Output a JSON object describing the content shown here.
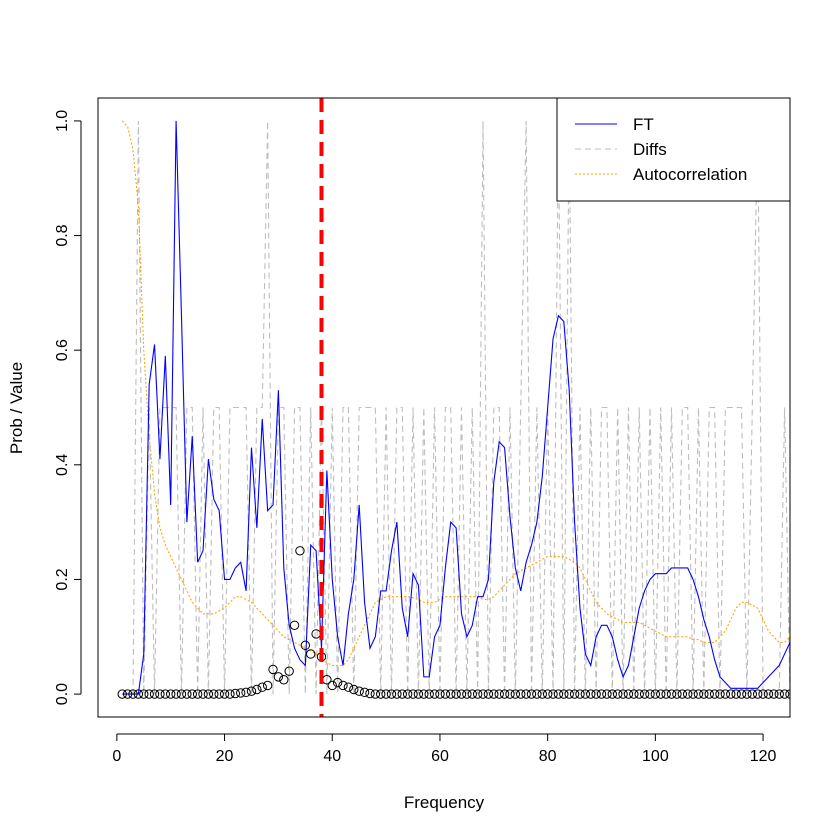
{
  "chart_data": {
    "type": "line",
    "xlabel": "Frequency",
    "ylabel": "Prob / Value",
    "xlim": [
      -3.5,
      125
    ],
    "ylim": [
      -0.04,
      1.04
    ],
    "x_ticks": [
      0,
      20,
      40,
      60,
      80,
      100,
      120
    ],
    "y_ticks": [
      0.0,
      0.2,
      0.4,
      0.6,
      0.8,
      1.0
    ],
    "x_tick_labels": [
      "0",
      "20",
      "40",
      "60",
      "80",
      "100",
      "120"
    ],
    "y_tick_labels": [
      "0.0",
      "0.2",
      "0.4",
      "0.6",
      "0.8",
      "1.0"
    ],
    "grid": false,
    "legend_position": "top-right",
    "vline": {
      "x": 38,
      "color": "#ff0000",
      "style": "dashed"
    },
    "series": [
      {
        "name": "FT",
        "color": "#0000ff",
        "style": "solid",
        "x": [
          1,
          2,
          3,
          4,
          5,
          6,
          7,
          8,
          9,
          10,
          11,
          12,
          13,
          14,
          15,
          16,
          17,
          18,
          19,
          20,
          21,
          22,
          23,
          24,
          25,
          26,
          27,
          28,
          29,
          30,
          31,
          32,
          33,
          34,
          35,
          36,
          37,
          38,
          39,
          40,
          41,
          42,
          43,
          44,
          45,
          46,
          47,
          48,
          49,
          50,
          51,
          52,
          53,
          54,
          55,
          56,
          57,
          58,
          59,
          60,
          61,
          62,
          63,
          64,
          65,
          66,
          67,
          68,
          69,
          70,
          71,
          72,
          73,
          74,
          75,
          76,
          77,
          78,
          79,
          80,
          81,
          82,
          83,
          84,
          85,
          86,
          87,
          88,
          89,
          90,
          91,
          92,
          93,
          94,
          95,
          96,
          97,
          98,
          99,
          100,
          101,
          102,
          103,
          104,
          105,
          106,
          107,
          108,
          109,
          110,
          111,
          112,
          113,
          114,
          115,
          116,
          117,
          118,
          119,
          120,
          121,
          122,
          123,
          124,
          125
        ],
        "y": [
          0.0,
          0.0,
          0.0,
          0.0,
          0.07,
          0.54,
          0.61,
          0.41,
          0.59,
          0.33,
          1.0,
          0.66,
          0.3,
          0.45,
          0.23,
          0.25,
          0.41,
          0.34,
          0.32,
          0.2,
          0.2,
          0.22,
          0.23,
          0.18,
          0.43,
          0.29,
          0.48,
          0.32,
          0.33,
          0.53,
          0.22,
          0.12,
          0.08,
          0.06,
          0.05,
          0.26,
          0.25,
          0.08,
          0.39,
          0.2,
          0.1,
          0.05,
          0.14,
          0.2,
          0.33,
          0.16,
          0.08,
          0.1,
          0.18,
          0.18,
          0.25,
          0.3,
          0.15,
          0.1,
          0.21,
          0.19,
          0.03,
          0.03,
          0.1,
          0.12,
          0.22,
          0.3,
          0.29,
          0.14,
          0.1,
          0.12,
          0.17,
          0.17,
          0.2,
          0.37,
          0.44,
          0.43,
          0.31,
          0.22,
          0.18,
          0.23,
          0.26,
          0.3,
          0.38,
          0.5,
          0.62,
          0.66,
          0.65,
          0.53,
          0.3,
          0.15,
          0.07,
          0.05,
          0.1,
          0.12,
          0.12,
          0.1,
          0.06,
          0.03,
          0.05,
          0.1,
          0.15,
          0.18,
          0.2,
          0.21,
          0.21,
          0.21,
          0.22,
          0.22,
          0.22,
          0.22,
          0.2,
          0.17,
          0.13,
          0.1,
          0.06,
          0.03,
          0.02,
          0.01,
          0.01,
          0.01,
          0.01,
          0.01,
          0.01,
          0.02,
          0.03,
          0.04,
          0.05,
          0.07,
          0.09
        ]
      },
      {
        "name": "Diffs",
        "color": "#bebebe",
        "style": "dashed",
        "x": [
          1,
          2,
          3,
          4,
          5,
          6,
          7,
          8,
          9,
          10,
          11,
          12,
          13,
          14,
          15,
          16,
          17,
          18,
          19,
          20,
          21,
          22,
          23,
          24,
          25,
          26,
          27,
          28,
          29,
          30,
          31,
          32,
          33,
          34,
          35,
          36,
          37,
          38,
          39,
          40,
          41,
          42,
          43,
          44,
          45,
          46,
          47,
          48,
          49,
          50,
          51,
          52,
          53,
          54,
          55,
          56,
          57,
          58,
          59,
          60,
          61,
          62,
          63,
          64,
          65,
          66,
          67,
          68,
          69,
          70,
          71,
          72,
          73,
          74,
          75,
          76,
          77,
          78,
          79,
          80,
          81,
          82,
          83,
          84,
          85,
          86,
          87,
          88,
          89,
          90,
          91,
          92,
          93,
          94,
          95,
          96,
          97,
          98,
          99,
          100,
          101,
          102,
          103,
          104,
          105,
          106,
          107,
          108,
          109,
          110,
          111,
          112,
          113,
          114,
          115,
          116,
          117,
          118,
          119,
          120,
          121,
          122,
          123,
          124,
          125
        ],
        "y": [
          0,
          0,
          0,
          1,
          0,
          0.5,
          0,
          0.5,
          0.5,
          0.5,
          0.5,
          0,
          0.5,
          0.5,
          0,
          0.5,
          0,
          0.5,
          0.5,
          0,
          0.5,
          0.5,
          0.5,
          0.5,
          0,
          0.5,
          0.5,
          1,
          0,
          0.5,
          0.5,
          0,
          0.5,
          0.5,
          0,
          0.5,
          0,
          0.5,
          0,
          0.5,
          0,
          0.5,
          0.5,
          0,
          0.5,
          0.5,
          0.5,
          0.5,
          0,
          0.5,
          0,
          0.5,
          0.5,
          0,
          0.5,
          0,
          0.5,
          0,
          0.5,
          0,
          0.5,
          0.5,
          0,
          0.5,
          0,
          0.5,
          0,
          1,
          0,
          0.5,
          0.5,
          0,
          0.5,
          0,
          0.5,
          1,
          0,
          0.5,
          0,
          0.5,
          0,
          1,
          0,
          1,
          0,
          0.5,
          0,
          0.5,
          0,
          0.5,
          0.5,
          0,
          0.5,
          0,
          0.5,
          0,
          0.5,
          0,
          0.5,
          0,
          0.5,
          0,
          0.5,
          0,
          0.5,
          0.5,
          0,
          0.5,
          0,
          0.5,
          0.5,
          0,
          0.5,
          0.5,
          0.5,
          0.5,
          0,
          0.5,
          1,
          0,
          0,
          0,
          0,
          0.5,
          0
        ]
      },
      {
        "name": "Autocorrelation",
        "color": "#ffa500",
        "style": "dotted",
        "x": [
          1,
          2,
          3,
          4,
          5,
          6,
          7,
          8,
          9,
          10,
          11,
          12,
          13,
          14,
          15,
          16,
          17,
          18,
          19,
          20,
          21,
          22,
          23,
          24,
          25,
          26,
          27,
          28,
          29,
          30,
          31,
          32,
          33,
          34,
          35,
          36,
          37,
          38,
          39,
          40,
          41,
          42,
          43,
          44,
          45,
          46,
          47,
          48,
          49,
          50,
          51,
          52,
          53,
          54,
          55,
          56,
          57,
          58,
          59,
          60,
          61,
          62,
          63,
          64,
          65,
          66,
          67,
          68,
          69,
          70,
          71,
          72,
          73,
          74,
          75,
          76,
          77,
          78,
          79,
          80,
          81,
          82,
          83,
          84,
          85,
          86,
          87,
          88,
          89,
          90,
          91,
          92,
          93,
          94,
          95,
          96,
          97,
          98,
          99,
          100,
          101,
          102,
          103,
          104,
          105,
          106,
          107,
          108,
          109,
          110,
          111,
          112,
          113,
          114,
          115,
          116,
          117,
          118,
          119,
          120,
          121,
          122,
          123,
          124,
          125
        ],
        "y": [
          1.0,
          0.99,
          0.95,
          0.85,
          0.6,
          0.45,
          0.35,
          0.29,
          0.26,
          0.24,
          0.22,
          0.2,
          0.18,
          0.16,
          0.15,
          0.14,
          0.14,
          0.14,
          0.145,
          0.15,
          0.16,
          0.17,
          0.17,
          0.165,
          0.16,
          0.15,
          0.14,
          0.13,
          0.12,
          0.11,
          0.1,
          0.095,
          0.09,
          0.085,
          0.08,
          0.075,
          0.07,
          0.06,
          0.055,
          0.05,
          0.05,
          0.05,
          0.06,
          0.08,
          0.1,
          0.12,
          0.14,
          0.16,
          0.165,
          0.17,
          0.17,
          0.17,
          0.17,
          0.17,
          0.168,
          0.165,
          0.16,
          0.16,
          0.16,
          0.165,
          0.17,
          0.17,
          0.17,
          0.17,
          0.17,
          0.17,
          0.17,
          0.165,
          0.165,
          0.17,
          0.18,
          0.19,
          0.2,
          0.21,
          0.215,
          0.22,
          0.225,
          0.23,
          0.235,
          0.24,
          0.24,
          0.24,
          0.24,
          0.235,
          0.23,
          0.22,
          0.2,
          0.18,
          0.16,
          0.15,
          0.14,
          0.135,
          0.13,
          0.125,
          0.125,
          0.125,
          0.125,
          0.12,
          0.115,
          0.11,
          0.105,
          0.1,
          0.1,
          0.1,
          0.1,
          0.1,
          0.095,
          0.095,
          0.09,
          0.09,
          0.09,
          0.1,
          0.11,
          0.13,
          0.15,
          0.16,
          0.16,
          0.155,
          0.15,
          0.13,
          0.11,
          0.1,
          0.09,
          0.09,
          0.1
        ]
      },
      {
        "name": "",
        "type": "scatter",
        "color": "#000000",
        "x": [
          1,
          2,
          3,
          4,
          5,
          6,
          7,
          8,
          9,
          10,
          11,
          12,
          13,
          14,
          15,
          16,
          17,
          18,
          19,
          20,
          21,
          22,
          23,
          24,
          25,
          26,
          27,
          28,
          29,
          30,
          31,
          32,
          33,
          34,
          35,
          36,
          37,
          38,
          39,
          40,
          41,
          42,
          43,
          44,
          45,
          46,
          47,
          48,
          49,
          50,
          51,
          52,
          53,
          54,
          55,
          56,
          57,
          58,
          59,
          60,
          61,
          62,
          63,
          64,
          65,
          66,
          67,
          68,
          69,
          70,
          71,
          72,
          73,
          74,
          75,
          76,
          77,
          78,
          79,
          80,
          81,
          82,
          83,
          84,
          85,
          86,
          87,
          88,
          89,
          90,
          91,
          92,
          93,
          94,
          95,
          96,
          97,
          98,
          99,
          100,
          101,
          102,
          103,
          104,
          105,
          106,
          107,
          108,
          109,
          110,
          111,
          112,
          113,
          114,
          115,
          116,
          117,
          118,
          119,
          120,
          121,
          122,
          123,
          124,
          125
        ],
        "y": [
          0,
          0,
          0,
          0,
          0,
          0,
          0,
          0,
          0,
          0,
          0,
          0,
          0,
          0,
          0,
          0,
          0,
          0,
          0,
          0,
          0,
          0.001,
          0.002,
          0.003,
          0.005,
          0.008,
          0.012,
          0.015,
          0.043,
          0.03,
          0.025,
          0.04,
          0.12,
          0.25,
          0.085,
          0.07,
          0.105,
          0.065,
          0.025,
          0.015,
          0.02,
          0.015,
          0.012,
          0.008,
          0.005,
          0.003,
          0.001,
          0,
          0,
          0,
          0,
          0,
          0,
          0,
          0,
          0,
          0,
          0,
          0,
          0,
          0,
          0,
          0,
          0,
          0,
          0,
          0,
          0,
          0,
          0,
          0,
          0,
          0,
          0,
          0,
          0,
          0,
          0,
          0,
          0,
          0,
          0,
          0,
          0,
          0,
          0,
          0,
          0,
          0,
          0,
          0,
          0,
          0,
          0,
          0,
          0,
          0,
          0,
          0,
          0,
          0,
          0,
          0,
          0,
          0,
          0,
          0,
          0,
          0,
          0,
          0,
          0,
          0,
          0,
          0,
          0,
          0,
          0,
          0,
          0,
          0,
          0,
          0,
          0,
          0
        ]
      }
    ]
  }
}
